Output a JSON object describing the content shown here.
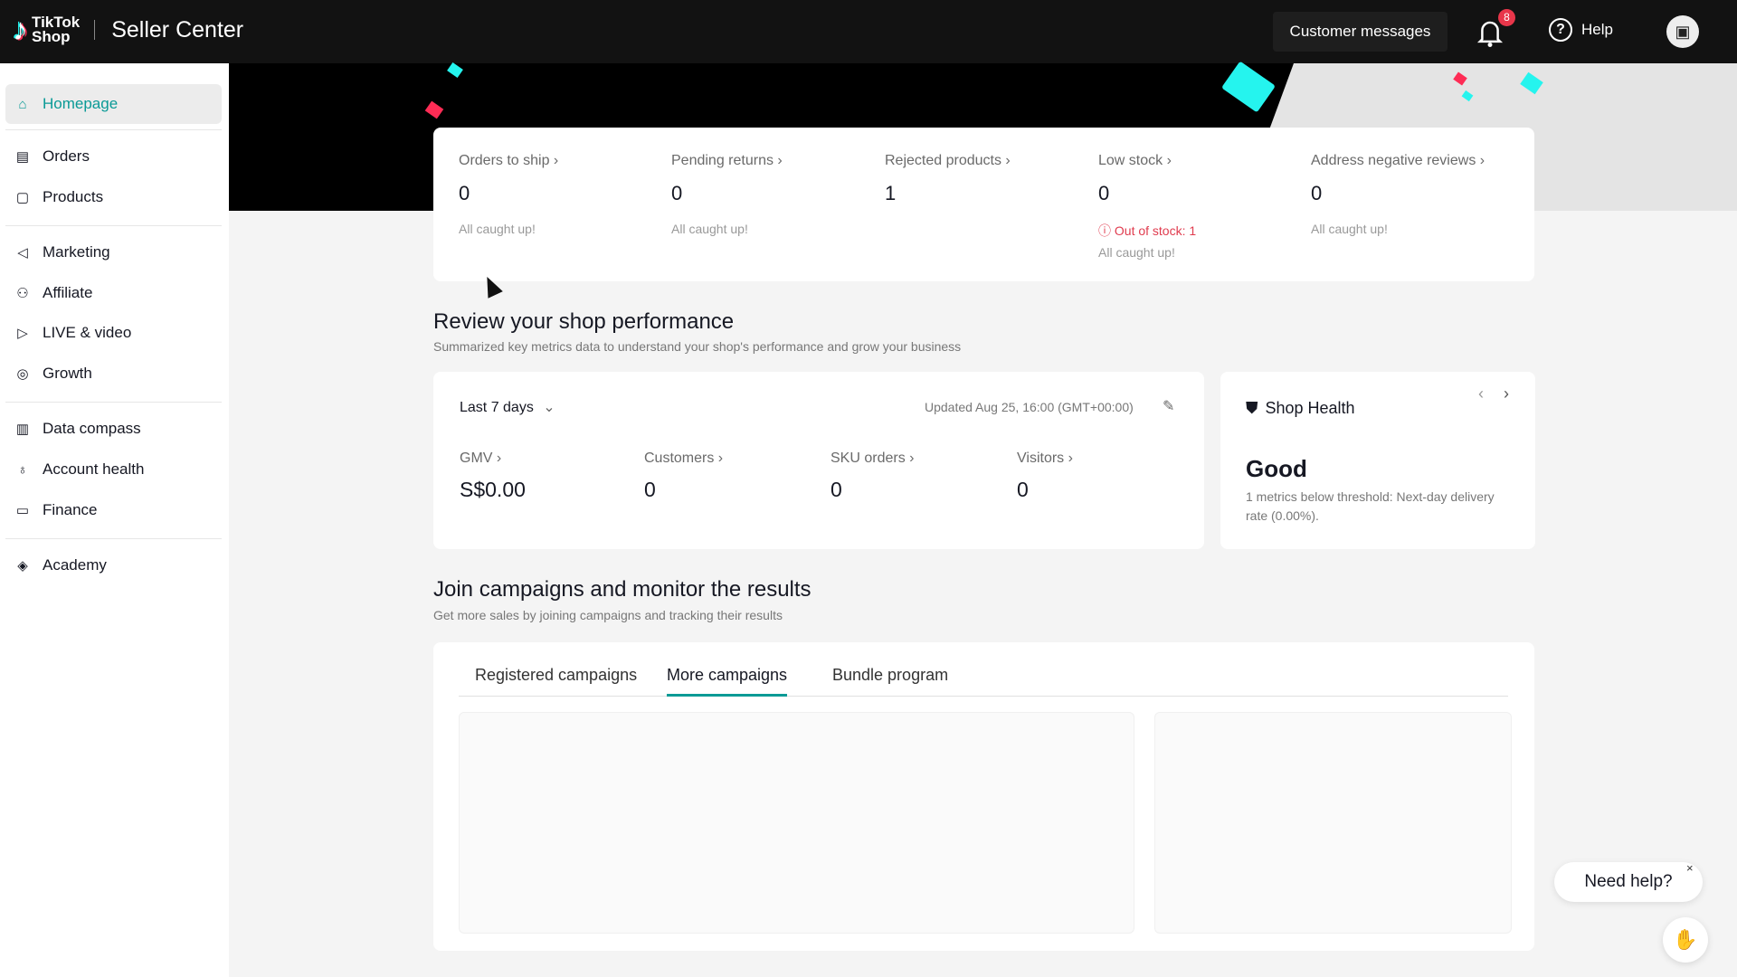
{
  "header": {
    "logo_top": "TikTok",
    "logo_bottom": "Shop",
    "title": "Seller Center",
    "customer_messages": "Customer messages",
    "notification_count": "8",
    "help": "Help"
  },
  "sidebar": {
    "items": [
      {
        "label": "Homepage",
        "icon": "home-icon",
        "active": true
      },
      {
        "label": "Orders",
        "icon": "clipboard-icon"
      },
      {
        "label": "Products",
        "icon": "product-icon"
      },
      {
        "label": "Marketing",
        "icon": "megaphone-icon"
      },
      {
        "label": "Affiliate",
        "icon": "people-icon"
      },
      {
        "label": "LIVE & video",
        "icon": "video-icon"
      },
      {
        "label": "Growth",
        "icon": "growth-icon"
      },
      {
        "label": "Data compass",
        "icon": "chart-icon"
      },
      {
        "label": "Account health",
        "icon": "trophy-icon"
      },
      {
        "label": "Finance",
        "icon": "wallet-icon"
      },
      {
        "label": "Academy",
        "icon": "graduation-icon"
      }
    ]
  },
  "todo": [
    {
      "label": "Orders to ship ›",
      "value": "0",
      "sub": "All caught up!"
    },
    {
      "label": "Pending returns ›",
      "value": "0",
      "sub": "All caught up!"
    },
    {
      "label": "Rejected products ›",
      "value": "1"
    },
    {
      "label": "Low stock ›",
      "value": "0",
      "error": "Out of stock: 1",
      "sub": "All caught up!"
    },
    {
      "label": "Address negative reviews ›",
      "value": "0",
      "sub": "All caught up!"
    }
  ],
  "performance": {
    "title": "Review your shop performance",
    "subtitle": "Summarized key metrics data to understand your shop's performance and grow your business",
    "range": "Last 7 days",
    "updated": "Updated Aug 25, 16:00 (GMT+00:00)",
    "metrics": [
      {
        "label": "GMV ›",
        "value": "S$0.00"
      },
      {
        "label": "Customers ›",
        "value": "0"
      },
      {
        "label": "SKU orders ›",
        "value": "0"
      },
      {
        "label": "Visitors ›",
        "value": "0"
      }
    ]
  },
  "health": {
    "title": "Shop Health",
    "status": "Good",
    "desc": "1 metrics below threshold: Next-day delivery rate (0.00%)."
  },
  "campaigns": {
    "title": "Join campaigns and monitor the results",
    "subtitle": "Get more sales by joining campaigns and tracking their results",
    "tabs": [
      "Registered campaigns",
      "More campaigns",
      "Bundle program"
    ],
    "active_tab": "More campaigns"
  },
  "chat": {
    "need_help": "Need help?",
    "close": "×"
  },
  "colors": {
    "accent": "#0a9a96",
    "error": "#e03b4e",
    "header": "#121212"
  }
}
